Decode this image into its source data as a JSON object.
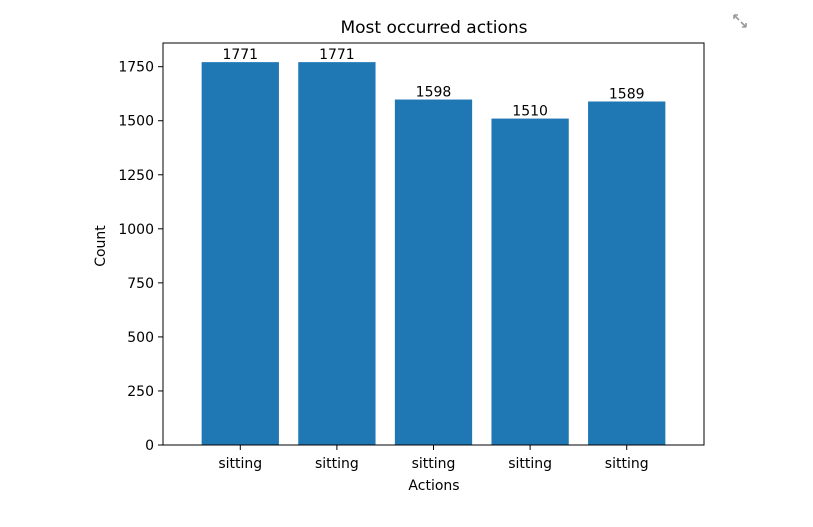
{
  "chart_data": {
    "type": "bar",
    "title": "Most occurred actions",
    "xlabel": "Actions",
    "ylabel": "Count",
    "categories": [
      "sitting",
      "sitting",
      "sitting",
      "sitting",
      "sitting"
    ],
    "values": [
      1771,
      1771,
      1598,
      1510,
      1589
    ],
    "value_labels": [
      "1771",
      "1771",
      "1598",
      "1510",
      "1589"
    ],
    "ylim": [
      0,
      1859.55
    ],
    "yticks": [
      0,
      250,
      500,
      750,
      1000,
      1250,
      1500,
      1750
    ],
    "ytick_labels": [
      "0",
      "250",
      "500",
      "750",
      "1000",
      "1250",
      "1500",
      "1750"
    ],
    "bar_color": "#1f77b4",
    "grid": false,
    "legend": "none"
  },
  "toolbar": {
    "expand_icon": "expand-arrows-icon"
  }
}
